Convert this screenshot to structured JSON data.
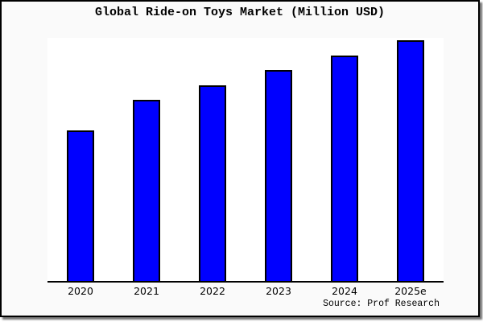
{
  "chart": {
    "title": "Global Ride-on Toys Market (Million USD)",
    "source_note": "Source: Prof Research"
  },
  "chart_data": {
    "type": "bar",
    "title": "Global Ride-on Toys Market (Million USD)",
    "categories": [
      "2020",
      "2021",
      "2022",
      "2023",
      "2024",
      "2025e"
    ],
    "values": [
      62.5,
      75.3,
      81.3,
      87.6,
      93.6,
      100
    ],
    "value_note": "no y-axis ticks or value labels shown; values are relative bar heights with tallest bar (2025e) = 100",
    "xlabel": "",
    "ylabel": "",
    "ylim": [
      0,
      100
    ],
    "grid": false,
    "legend": false,
    "bar_color": "#0000ff",
    "bar_border_color": "#000000",
    "source_note": "Source: Prof Research"
  },
  "colors": {
    "canvas_background": "#fafafa",
    "plot_background": "#ffffff",
    "bar_fill": "#0000ff",
    "axis": "#000000",
    "text": "#000000",
    "frame_border": "#000000"
  }
}
